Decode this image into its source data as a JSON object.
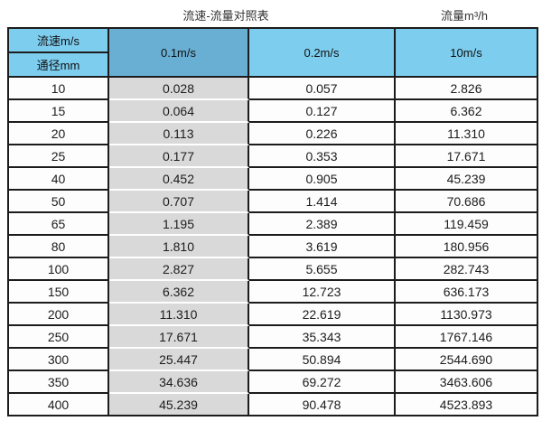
{
  "titles": {
    "main": "流速-流量对照表",
    "unit": "流量m³/h"
  },
  "table": {
    "corner_top": "流速m/s",
    "corner_bottom": "通径mm",
    "columns": [
      "0.1m/s",
      "0.2m/s",
      "10m/s"
    ],
    "rows": [
      {
        "diameter": "10",
        "values": [
          "0.028",
          "0.057",
          "2.826"
        ]
      },
      {
        "diameter": "15",
        "values": [
          "0.064",
          "0.127",
          "6.362"
        ]
      },
      {
        "diameter": "20",
        "values": [
          "0.113",
          "0.226",
          "11.310"
        ]
      },
      {
        "diameter": "25",
        "values": [
          "0.177",
          "0.353",
          "17.671"
        ]
      },
      {
        "diameter": "40",
        "values": [
          "0.452",
          "0.905",
          "45.239"
        ]
      },
      {
        "diameter": "50",
        "values": [
          "0.707",
          "1.414",
          "70.686"
        ]
      },
      {
        "diameter": "65",
        "values": [
          "1.195",
          "2.389",
          "119.459"
        ]
      },
      {
        "diameter": "80",
        "values": [
          "1.810",
          "3.619",
          "180.956"
        ]
      },
      {
        "diameter": "100",
        "values": [
          "2.827",
          "5.655",
          "282.743"
        ]
      },
      {
        "diameter": "150",
        "values": [
          "6.362",
          "12.723",
          "636.173"
        ]
      },
      {
        "diameter": "200",
        "values": [
          "11.310",
          "22.619",
          "1130.973"
        ]
      },
      {
        "diameter": "250",
        "values": [
          "17.671",
          "35.343",
          "1767.146"
        ]
      },
      {
        "diameter": "300",
        "values": [
          "25.447",
          "50.894",
          "2544.690"
        ]
      },
      {
        "diameter": "350",
        "values": [
          "34.636",
          "69.272",
          "3463.606"
        ]
      },
      {
        "diameter": "400",
        "values": [
          "45.239",
          "90.478",
          "4523.893"
        ]
      }
    ]
  },
  "colors": {
    "header_blue": "#7DCDEF",
    "highlight_blue": "#69AFD3",
    "gray_column": "#D9D9D9",
    "border": "#1C1C1C"
  }
}
